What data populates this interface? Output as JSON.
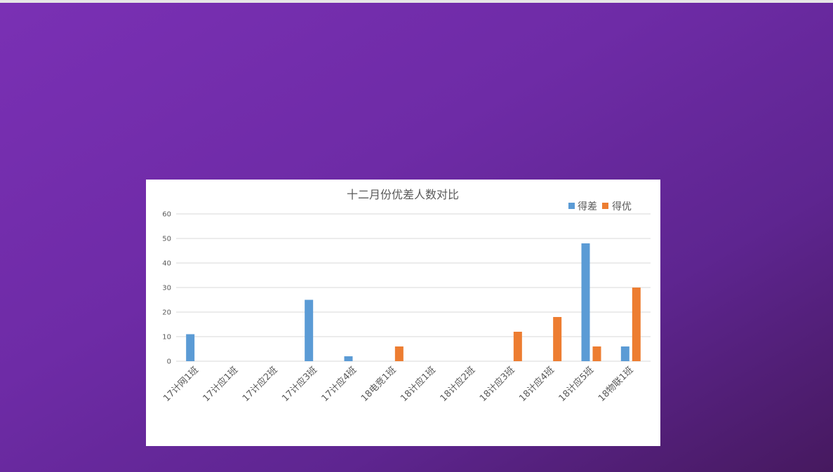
{
  "chart_data": {
    "type": "bar",
    "title": "十二月份优差人数对比",
    "xlabel": "",
    "ylabel": "",
    "ylim": [
      0,
      60
    ],
    "yticks": [
      0,
      10,
      20,
      30,
      40,
      50,
      60
    ],
    "grid": true,
    "legend_position": "top-right",
    "categories": [
      "17计网1班",
      "17计应1班",
      "17计应2班",
      "17计应3班",
      "17计应4班",
      "18电竞1班",
      "18计应1班",
      "18计应2班",
      "18计应3班",
      "18计应4班",
      "18计应5班",
      "18物联1班"
    ],
    "series": [
      {
        "name": "得差",
        "color": "#5b9bd5",
        "values": [
          11,
          0,
          0,
          25,
          2,
          0,
          0,
          0,
          0,
          0,
          48,
          6
        ]
      },
      {
        "name": "得优",
        "color": "#ed7d31",
        "values": [
          0,
          0,
          0,
          0,
          0,
          6,
          0,
          0,
          12,
          18,
          6,
          30
        ]
      }
    ]
  }
}
